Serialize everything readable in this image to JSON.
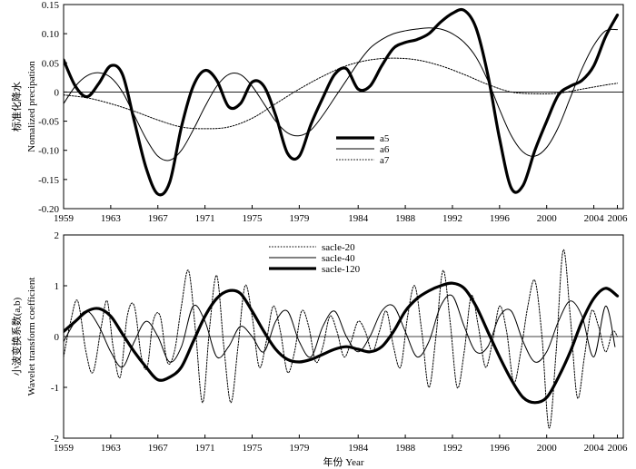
{
  "chart_data": [
    {
      "type": "line",
      "ylabel_lines": [
        "标准化降水",
        "Nomalized precipation"
      ],
      "xlim": [
        1959,
        2006.5
      ],
      "ylim": [
        -0.2,
        0.15
      ],
      "xticks": [
        1959,
        1963,
        1967,
        1971,
        1975,
        1979,
        1984,
        1988,
        1992,
        1996,
        2000,
        2004,
        2006
      ],
      "yticks": [
        -0.2,
        -0.15,
        -0.1,
        -0.05,
        0,
        0.05,
        0.1,
        0.15
      ],
      "ytick_labels": [
        "-0.20",
        "-0.15",
        "-0.10",
        "-0.05",
        "0",
        "0.05",
        "0.10",
        "0.15"
      ],
      "legend_position": "center-right",
      "series": [
        {
          "name": "a5",
          "style": "thick",
          "x": [
            1959,
            1960,
            1961,
            1962,
            1963,
            1964,
            1965,
            1966,
            1967,
            1968,
            1969,
            1970,
            1971,
            1972,
            1973,
            1974,
            1975,
            1976,
            1977,
            1978,
            1979,
            1980,
            1981,
            1982,
            1983,
            1984,
            1985,
            1986,
            1987,
            1988,
            1989,
            1990,
            1991,
            1992,
            1993,
            1994,
            1995,
            1996,
            1997,
            1998,
            1999,
            2000,
            2001,
            2002,
            2003,
            2004,
            2005,
            2006
          ],
          "y": [
            0.055,
            0.01,
            -0.008,
            0.015,
            0.045,
            0.03,
            -0.05,
            -0.13,
            -0.175,
            -0.155,
            -0.06,
            0.01,
            0.037,
            0.02,
            -0.025,
            -0.02,
            0.017,
            0.01,
            -0.04,
            -0.105,
            -0.11,
            -0.055,
            -0.01,
            0.03,
            0.04,
            0.005,
            0.01,
            0.045,
            0.075,
            0.085,
            0.09,
            0.1,
            0.12,
            0.135,
            0.14,
            0.11,
            0.03,
            -0.08,
            -0.165,
            -0.16,
            -0.1,
            -0.05,
            -0.005,
            0.01,
            0.02,
            0.045,
            0.095,
            0.132
          ]
        },
        {
          "name": "a6",
          "style": "thin",
          "x": [
            1959,
            1960,
            1961,
            1962,
            1963,
            1964,
            1965,
            1966,
            1967,
            1968,
            1969,
            1970,
            1971,
            1972,
            1973,
            1974,
            1975,
            1976,
            1977,
            1978,
            1979,
            1980,
            1981,
            1982,
            1983,
            1984,
            1985,
            1986,
            1987,
            1988,
            1989,
            1990,
            1991,
            1992,
            1993,
            1994,
            1995,
            1996,
            1997,
            1998,
            1999,
            2000,
            2001,
            2002,
            2003,
            2004,
            2005,
            2006
          ],
          "y": [
            -0.02,
            0.01,
            0.028,
            0.033,
            0.025,
            0.0,
            -0.04,
            -0.08,
            -0.11,
            -0.117,
            -0.1,
            -0.065,
            -0.025,
            0.01,
            0.03,
            0.03,
            0.01,
            -0.02,
            -0.05,
            -0.07,
            -0.075,
            -0.065,
            -0.04,
            -0.01,
            0.02,
            0.05,
            0.075,
            0.09,
            0.1,
            0.105,
            0.108,
            0.11,
            0.108,
            0.1,
            0.085,
            0.06,
            0.02,
            -0.03,
            -0.075,
            -0.103,
            -0.11,
            -0.095,
            -0.06,
            -0.01,
            0.04,
            0.08,
            0.105,
            0.107
          ]
        },
        {
          "name": "a7",
          "style": "dotted",
          "x": [
            1959,
            1961,
            1963,
            1965,
            1967,
            1969,
            1971,
            1973,
            1975,
            1977,
            1979,
            1981,
            1983,
            1985,
            1987,
            1989,
            1991,
            1993,
            1995,
            1997,
            1999,
            2001,
            2003,
            2005,
            2006
          ],
          "y": [
            -0.005,
            -0.01,
            -0.02,
            -0.033,
            -0.048,
            -0.06,
            -0.063,
            -0.06,
            -0.045,
            -0.02,
            0.005,
            0.027,
            0.045,
            0.055,
            0.058,
            0.055,
            0.045,
            0.03,
            0.013,
            0.0,
            -0.003,
            -0.002,
            0.005,
            0.012,
            0.015
          ]
        }
      ]
    },
    {
      "type": "line",
      "xlabel": "年份 Year",
      "ylabel_lines": [
        "小波变换系数(a,b)",
        "Wavelet transform coefficient"
      ],
      "xlim": [
        1959,
        2006.5
      ],
      "ylim": [
        -2,
        2
      ],
      "xticks": [
        1959,
        1963,
        1967,
        1971,
        1975,
        1979,
        1984,
        1988,
        1992,
        1996,
        2000,
        2004,
        2006
      ],
      "yticks": [
        -2,
        -1,
        0,
        1,
        2
      ],
      "ytick_labels": [
        "-2",
        "-1",
        "0",
        "1",
        "2"
      ],
      "legend_position": "top-center",
      "series": [
        {
          "name": "sacle-20",
          "style": "dotted",
          "x": [
            1959,
            1959.6,
            1960.2,
            1960.9,
            1961.5,
            1962.2,
            1962.7,
            1963.2,
            1963.8,
            1964.4,
            1965.0,
            1965.6,
            1966.1,
            1966.6,
            1967.2,
            1967.8,
            1968.4,
            1969.0,
            1969.6,
            1970.2,
            1970.8,
            1971.4,
            1972.0,
            1972.6,
            1973.2,
            1973.8,
            1974.4,
            1975.0,
            1975.6,
            1976.2,
            1976.8,
            1977.4,
            1978.0,
            1978.6,
            1979.2,
            1979.8,
            1980.4,
            1981.0,
            1981.6,
            1982.2,
            1982.8,
            1983.4,
            1984.0,
            1984.6,
            1985.2,
            1985.8,
            1986.4,
            1987.0,
            1987.6,
            1988.2,
            1988.8,
            1989.4,
            1990.0,
            1990.6,
            1991.2,
            1991.8,
            1992.4,
            1993.0,
            1993.6,
            1994.2,
            1994.8,
            1995.4,
            1996.0,
            1996.6,
            1997.2,
            1997.8,
            1998.4,
            1999.0,
            1999.6,
            2000.2,
            2000.8,
            2001.4,
            2002.0,
            2002.6,
            2003.2,
            2003.8,
            2004.4,
            2005.0,
            2005.6,
            2006.0
          ],
          "y": [
            -0.4,
            0.3,
            0.7,
            -0.3,
            -0.7,
            0.2,
            0.7,
            -0.2,
            -0.8,
            0.4,
            0.6,
            -0.4,
            -0.6,
            0.3,
            0.4,
            -0.5,
            -0.3,
            0.6,
            1.3,
            0.1,
            -1.3,
            0.2,
            1.2,
            -0.2,
            -1.3,
            -0.2,
            1.0,
            0.4,
            -0.6,
            -0.1,
            0.6,
            0.1,
            -0.7,
            -0.3,
            0.5,
            0.2,
            -0.5,
            -0.2,
            0.4,
            0.1,
            -0.4,
            -0.1,
            0.3,
            0.1,
            -0.3,
            0.1,
            0.5,
            -0.2,
            -0.6,
            0.4,
            1.0,
            0.1,
            -1.0,
            0.0,
            1.3,
            0.3,
            -1.0,
            -0.3,
            0.8,
            0.2,
            -0.6,
            -0.1,
            0.6,
            0.1,
            -0.9,
            -0.3,
            0.6,
            1.1,
            0.0,
            -1.8,
            -0.3,
            1.7,
            0.4,
            -1.2,
            -0.4,
            0.5,
            0.2,
            -0.3,
            0.1,
            0.0
          ]
        },
        {
          "name": "sacle-40",
          "style": "thin",
          "x": [
            1959,
            1960.0,
            1961.0,
            1962.0,
            1963.0,
            1964.0,
            1965.0,
            1966.0,
            1967.0,
            1968.0,
            1969.0,
            1970.0,
            1971.0,
            1972.0,
            1973.0,
            1974.0,
            1975.0,
            1976.0,
            1977.0,
            1978.0,
            1979.0,
            1980.0,
            1981.0,
            1982.0,
            1983.0,
            1984.0,
            1985.0,
            1986.0,
            1987.0,
            1988.0,
            1989.0,
            1990.0,
            1991.0,
            1992.0,
            1993.0,
            1994.0,
            1995.0,
            1996.0,
            1997.0,
            1998.0,
            1999.0,
            2000.0,
            2001.0,
            2002.0,
            2003.0,
            2004.0,
            2005.0,
            2005.8
          ],
          "y": [
            -0.1,
            0.3,
            0.5,
            0.2,
            -0.3,
            -0.6,
            -0.1,
            0.3,
            0.0,
            -0.5,
            -0.2,
            0.6,
            0.3,
            -0.4,
            -0.2,
            0.2,
            0.0,
            -0.3,
            0.3,
            0.5,
            -0.1,
            -0.4,
            0.2,
            0.5,
            0.0,
            -0.3,
            0.0,
            0.5,
            0.6,
            0.1,
            -0.4,
            -0.1,
            0.6,
            0.8,
            0.2,
            -0.3,
            -0.2,
            0.4,
            0.5,
            -0.1,
            -0.5,
            -0.3,
            0.3,
            0.7,
            0.4,
            -0.4,
            0.6,
            -0.2
          ]
        },
        {
          "name": "sacle-120",
          "style": "thick",
          "x": [
            1959,
            1960,
            1961,
            1962,
            1963,
            1964,
            1965,
            1966,
            1967,
            1968,
            1969,
            1970,
            1971,
            1972,
            1973,
            1974,
            1975,
            1976,
            1977,
            1978,
            1979,
            1980,
            1981,
            1982,
            1983,
            1984,
            1985,
            1986,
            1987,
            1988,
            1989,
            1990,
            1991,
            1992,
            1993,
            1994,
            1995,
            1996,
            1997,
            1998,
            1999,
            2000,
            2001,
            2002,
            2003,
            2004,
            2005,
            2006
          ],
          "y": [
            0.1,
            0.3,
            0.5,
            0.55,
            0.4,
            0.05,
            -0.3,
            -0.6,
            -0.85,
            -0.8,
            -0.6,
            -0.1,
            0.4,
            0.75,
            0.9,
            0.85,
            0.5,
            0.1,
            -0.25,
            -0.45,
            -0.5,
            -0.45,
            -0.35,
            -0.25,
            -0.2,
            -0.25,
            -0.3,
            -0.2,
            0.1,
            0.5,
            0.75,
            0.9,
            1.0,
            1.05,
            0.95,
            0.6,
            0.1,
            -0.4,
            -0.85,
            -1.2,
            -1.3,
            -1.2,
            -0.8,
            -0.3,
            0.3,
            0.75,
            0.95,
            0.8
          ]
        }
      ]
    }
  ]
}
